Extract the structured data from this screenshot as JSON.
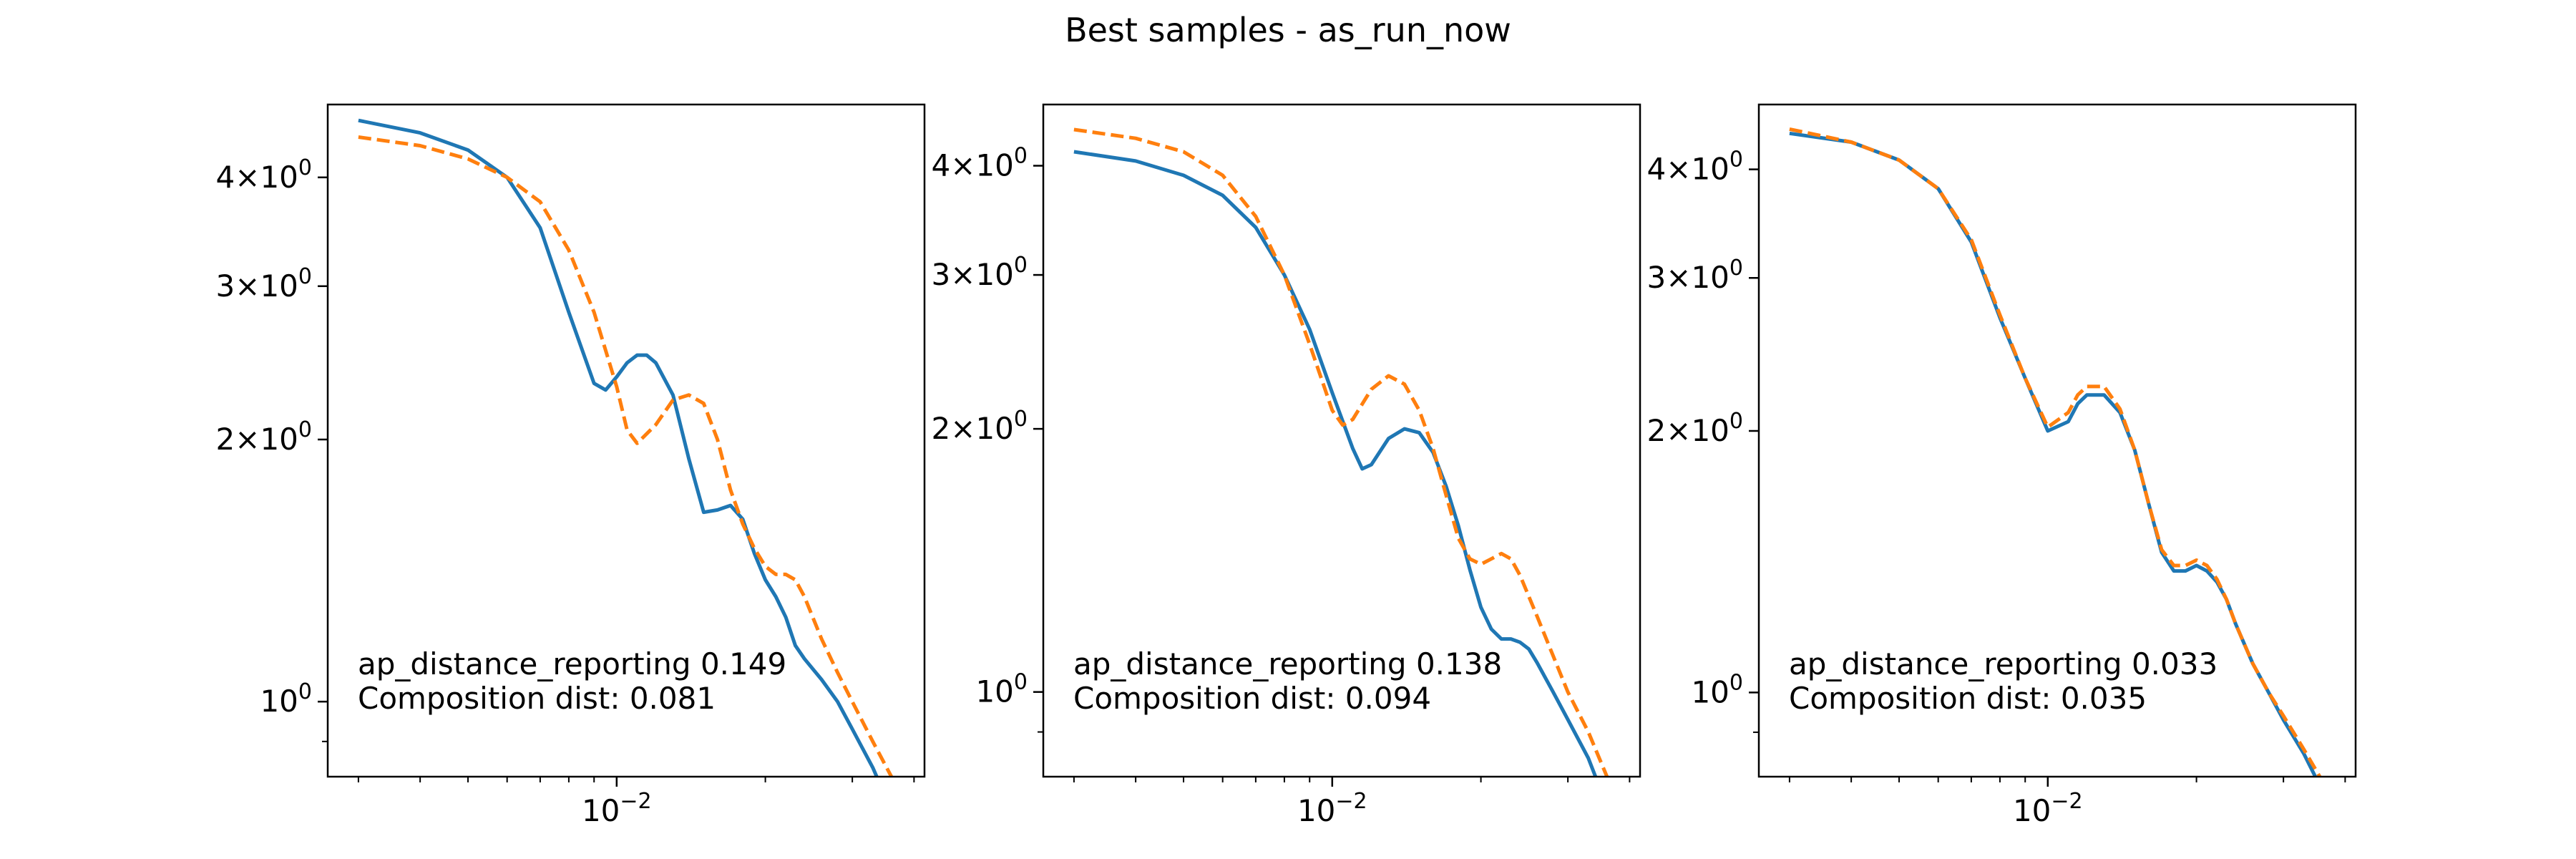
{
  "figure": {
    "title": "Best samples - as_run_now"
  },
  "colors": {
    "target": "#1f77b4",
    "sample": "#ff7f0e",
    "axes": "#000000",
    "background": "#ffffff"
  },
  "chart_data": [
    {
      "type": "line",
      "xscale": "log",
      "yscale": "log",
      "xlim": [
        0.0026,
        0.042
      ],
      "ylim": [
        0.82,
        4.85
      ],
      "xticks": [
        {
          "value": 0.01,
          "label": "10",
          "exp": "−2"
        }
      ],
      "yticks": [
        {
          "value": 4,
          "base": "4",
          "exp": "0"
        },
        {
          "value": 3,
          "base": "3",
          "exp": "0"
        },
        {
          "value": 2,
          "base": "2",
          "exp": "0"
        },
        {
          "value": 1,
          "base": "10",
          "exp": "0",
          "plain": true
        }
      ],
      "annotation": [
        "ap_distance_reporting 0.149",
        "Composition dist: 0.081"
      ],
      "series": [
        {
          "style": "solid",
          "color": "#1f77b4",
          "x": [
            0.003,
            0.004,
            0.005,
            0.006,
            0.007,
            0.008,
            0.009,
            0.0095,
            0.01,
            0.0105,
            0.011,
            0.0115,
            0.012,
            0.013,
            0.014,
            0.015,
            0.016,
            0.017,
            0.018,
            0.019,
            0.02,
            0.021,
            0.022,
            0.023,
            0.024,
            0.026,
            0.028,
            0.03,
            0.033,
            0.036
          ],
          "y": [
            4.65,
            4.5,
            4.3,
            4.0,
            3.5,
            2.8,
            2.32,
            2.28,
            2.36,
            2.45,
            2.5,
            2.5,
            2.45,
            2.25,
            1.9,
            1.65,
            1.66,
            1.68,
            1.62,
            1.48,
            1.38,
            1.32,
            1.25,
            1.16,
            1.12,
            1.06,
            1.0,
            0.93,
            0.84,
            0.75
          ]
        },
        {
          "style": "dashed",
          "color": "#ff7f0e",
          "x": [
            0.003,
            0.004,
            0.005,
            0.006,
            0.007,
            0.008,
            0.009,
            0.01,
            0.0105,
            0.011,
            0.012,
            0.013,
            0.014,
            0.015,
            0.016,
            0.017,
            0.018,
            0.019,
            0.02,
            0.021,
            0.022,
            0.023,
            0.024,
            0.026,
            0.028,
            0.03,
            0.033,
            0.036
          ],
          "y": [
            4.45,
            4.35,
            4.2,
            4.0,
            3.75,
            3.3,
            2.8,
            2.3,
            2.05,
            1.98,
            2.08,
            2.22,
            2.25,
            2.2,
            2.0,
            1.75,
            1.6,
            1.5,
            1.43,
            1.4,
            1.4,
            1.38,
            1.32,
            1.18,
            1.08,
            1.0,
            0.9,
            0.82
          ]
        }
      ]
    },
    {
      "type": "line",
      "xscale": "log",
      "yscale": "log",
      "xlim": [
        0.0026,
        0.042
      ],
      "ylim": [
        0.8,
        4.7
      ],
      "xticks": [
        {
          "value": 0.01,
          "label": "10",
          "exp": "−2"
        }
      ],
      "yticks": [
        {
          "value": 4,
          "base": "4",
          "exp": "0"
        },
        {
          "value": 3,
          "base": "3",
          "exp": "0"
        },
        {
          "value": 2,
          "base": "2",
          "exp": "0"
        },
        {
          "value": 1,
          "base": "10",
          "exp": "0",
          "plain": true
        }
      ],
      "annotation": [
        "ap_distance_reporting 0.138",
        "Composition dist: 0.094"
      ],
      "series": [
        {
          "style": "solid",
          "color": "#1f77b4",
          "x": [
            0.003,
            0.004,
            0.005,
            0.006,
            0.007,
            0.008,
            0.009,
            0.01,
            0.011,
            0.0115,
            0.012,
            0.013,
            0.014,
            0.015,
            0.016,
            0.017,
            0.018,
            0.019,
            0.02,
            0.021,
            0.022,
            0.023,
            0.024,
            0.025,
            0.026,
            0.028,
            0.03,
            0.033,
            0.036
          ],
          "y": [
            4.15,
            4.05,
            3.9,
            3.7,
            3.4,
            3.0,
            2.6,
            2.2,
            1.9,
            1.8,
            1.82,
            1.95,
            2.0,
            1.98,
            1.88,
            1.72,
            1.55,
            1.38,
            1.25,
            1.18,
            1.15,
            1.15,
            1.14,
            1.12,
            1.08,
            1.0,
            0.93,
            0.84,
            0.74
          ]
        },
        {
          "style": "dashed",
          "color": "#ff7f0e",
          "x": [
            0.003,
            0.004,
            0.005,
            0.006,
            0.007,
            0.008,
            0.009,
            0.01,
            0.0105,
            0.011,
            0.012,
            0.013,
            0.014,
            0.015,
            0.016,
            0.017,
            0.018,
            0.019,
            0.02,
            0.021,
            0.022,
            0.023,
            0.024,
            0.026,
            0.028,
            0.03,
            0.033,
            0.036
          ],
          "y": [
            4.4,
            4.3,
            4.15,
            3.9,
            3.5,
            3.0,
            2.5,
            2.1,
            2.02,
            2.05,
            2.22,
            2.3,
            2.25,
            2.1,
            1.9,
            1.68,
            1.5,
            1.42,
            1.4,
            1.42,
            1.44,
            1.42,
            1.36,
            1.22,
            1.1,
            1.0,
            0.9,
            0.8
          ]
        }
      ]
    },
    {
      "type": "line",
      "xscale": "log",
      "yscale": "log",
      "xlim": [
        0.0026,
        0.042
      ],
      "ylim": [
        0.8,
        4.75
      ],
      "xticks": [
        {
          "value": 0.01,
          "label": "10",
          "exp": "−2"
        }
      ],
      "yticks": [
        {
          "value": 4,
          "base": "4",
          "exp": "0"
        },
        {
          "value": 3,
          "base": "3",
          "exp": "0"
        },
        {
          "value": 2,
          "base": "2",
          "exp": "0"
        },
        {
          "value": 1,
          "base": "10",
          "exp": "0",
          "plain": true
        }
      ],
      "annotation": [
        "ap_distance_reporting 0.033",
        "Composition dist: 0.035"
      ],
      "series": [
        {
          "style": "solid",
          "color": "#1f77b4",
          "x": [
            0.003,
            0.004,
            0.005,
            0.006,
            0.007,
            0.008,
            0.009,
            0.01,
            0.011,
            0.0115,
            0.012,
            0.013,
            0.014,
            0.015,
            0.016,
            0.017,
            0.018,
            0.019,
            0.02,
            0.021,
            0.022,
            0.023,
            0.024,
            0.026,
            0.028,
            0.03,
            0.033,
            0.036
          ],
          "y": [
            4.4,
            4.3,
            4.1,
            3.8,
            3.3,
            2.7,
            2.3,
            2.0,
            2.05,
            2.15,
            2.2,
            2.2,
            2.1,
            1.9,
            1.65,
            1.45,
            1.38,
            1.38,
            1.4,
            1.38,
            1.34,
            1.28,
            1.2,
            1.08,
            1.0,
            0.93,
            0.85,
            0.77
          ]
        },
        {
          "style": "dashed",
          "color": "#ff7f0e",
          "x": [
            0.003,
            0.004,
            0.005,
            0.006,
            0.007,
            0.008,
            0.009,
            0.01,
            0.011,
            0.0115,
            0.012,
            0.013,
            0.014,
            0.015,
            0.016,
            0.017,
            0.018,
            0.019,
            0.02,
            0.021,
            0.022,
            0.023,
            0.024,
            0.026,
            0.028,
            0.03,
            0.033,
            0.036
          ],
          "y": [
            4.45,
            4.3,
            4.1,
            3.8,
            3.32,
            2.72,
            2.3,
            2.02,
            2.1,
            2.2,
            2.25,
            2.25,
            2.12,
            1.9,
            1.65,
            1.46,
            1.4,
            1.4,
            1.42,
            1.4,
            1.35,
            1.28,
            1.2,
            1.08,
            1.0,
            0.94,
            0.86,
            0.79
          ]
        }
      ]
    }
  ]
}
